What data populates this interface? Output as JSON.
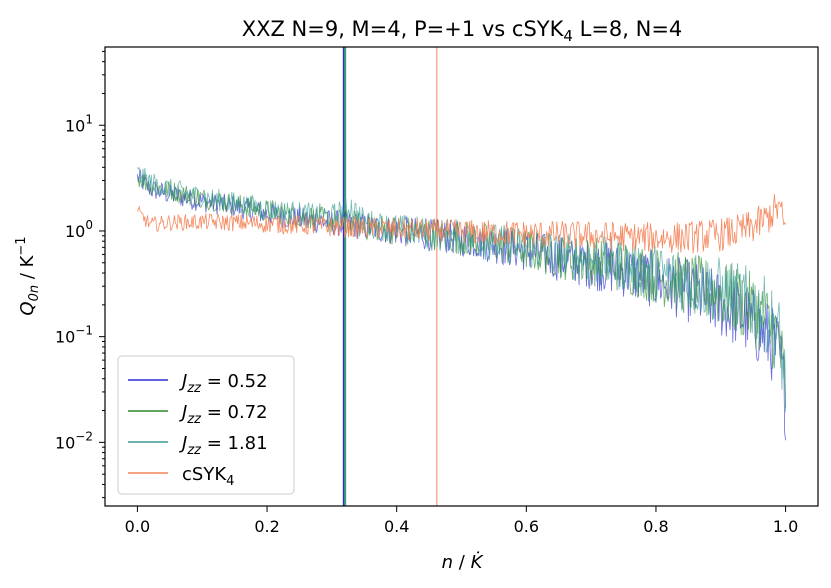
{
  "chart_data": {
    "type": "line",
    "title_parts": [
      "XXZ N=9, M=4, P=+1 vs cSYK",
      "4",
      " L=8, N=4"
    ],
    "title": "XXZ N=9, M=4, P=+1 vs cSYK4 L=8, N=4",
    "xlabel": "n / K̇",
    "ylabel": "Q0n / K−1",
    "yscale": "log",
    "xlim": [
      -0.05,
      1.05
    ],
    "ylim": [
      0.0025,
      55
    ],
    "xticks": [
      0.0,
      0.2,
      0.4,
      0.6,
      0.8,
      1.0
    ],
    "xtick_labels": [
      "0.0",
      "0.2",
      "0.4",
      "0.6",
      "0.8",
      "1.0"
    ],
    "yticks": [
      0.01,
      0.1,
      1,
      10
    ],
    "ytick_bases": [
      "10",
      "10",
      "10",
      "10"
    ],
    "ytick_exponents": [
      "−2",
      "−1",
      "0",
      "1"
    ],
    "legend_position": "lower-left",
    "series": [
      {
        "name": "Jzz = 0.52",
        "legend_main": "J",
        "legend_sub": "zz",
        "legend_value": " = 0.52",
        "color": "#2b2bd6",
        "x": [
          0.0,
          0.02,
          0.05,
          0.1,
          0.15,
          0.2,
          0.25,
          0.3,
          0.35,
          0.4,
          0.45,
          0.5,
          0.55,
          0.6,
          0.65,
          0.7,
          0.75,
          0.8,
          0.85,
          0.9,
          0.93,
          0.95,
          0.97,
          0.99,
          1.0
        ],
        "y": [
          3.2,
          2.5,
          2.2,
          1.9,
          1.7,
          1.45,
          1.3,
          1.2,
          1.1,
          1.0,
          0.92,
          0.85,
          0.75,
          0.65,
          0.55,
          0.48,
          0.42,
          0.34,
          0.27,
          0.2,
          0.16,
          0.13,
          0.1,
          0.07,
          0.025
        ],
        "vline": 0.318
      },
      {
        "name": "Jzz = 0.72",
        "legend_main": "J",
        "legend_sub": "zz",
        "legend_value": " = 0.72",
        "color": "#2e8b2e",
        "x": [
          0.0,
          0.02,
          0.05,
          0.1,
          0.15,
          0.2,
          0.25,
          0.3,
          0.35,
          0.4,
          0.45,
          0.5,
          0.55,
          0.6,
          0.65,
          0.7,
          0.75,
          0.8,
          0.85,
          0.9,
          0.93,
          0.95,
          0.97,
          0.99,
          1.0
        ],
        "y": [
          3.3,
          2.7,
          2.4,
          2.05,
          1.8,
          1.55,
          1.38,
          1.25,
          1.12,
          1.02,
          0.94,
          0.86,
          0.77,
          0.67,
          0.58,
          0.52,
          0.46,
          0.38,
          0.31,
          0.25,
          0.21,
          0.18,
          0.14,
          0.09,
          0.03
        ],
        "vline": 0.32
      },
      {
        "name": "Jzz = 1.81",
        "legend_main": "J",
        "legend_sub": "zz",
        "legend_value": " = 1.81",
        "color": "#3a9c96",
        "x": [
          0.0,
          0.02,
          0.05,
          0.1,
          0.15,
          0.2,
          0.25,
          0.3,
          0.33,
          0.35,
          0.4,
          0.45,
          0.5,
          0.55,
          0.6,
          0.65,
          0.7,
          0.75,
          0.8,
          0.85,
          0.9,
          0.93,
          0.95,
          0.97,
          0.99,
          1.0
        ],
        "y": [
          3.5,
          2.9,
          2.5,
          2.1,
          1.85,
          1.6,
          1.45,
          1.35,
          1.7,
          1.2,
          1.05,
          0.95,
          0.87,
          0.78,
          0.69,
          0.6,
          0.54,
          0.48,
          0.4,
          0.33,
          0.27,
          0.23,
          0.2,
          0.16,
          0.1,
          0.035
        ],
        "vline": 0.321
      },
      {
        "name": "cSYK4",
        "legend_main": "cSYK",
        "legend_sub": "4",
        "legend_value": "",
        "color": "#f4845a",
        "x": [
          0.0,
          0.02,
          0.05,
          0.1,
          0.15,
          0.2,
          0.25,
          0.3,
          0.35,
          0.4,
          0.45,
          0.5,
          0.55,
          0.6,
          0.65,
          0.7,
          0.75,
          0.8,
          0.85,
          0.9,
          0.93,
          0.95,
          0.97,
          0.99,
          1.0
        ],
        "y": [
          1.5,
          1.15,
          1.2,
          1.22,
          1.2,
          1.17,
          1.14,
          1.1,
          1.07,
          1.04,
          1.01,
          0.98,
          0.96,
          0.94,
          0.92,
          0.9,
          0.88,
          0.86,
          0.87,
          0.92,
          1.0,
          1.1,
          1.3,
          1.7,
          1.0
        ],
        "vline": 0.462
      }
    ]
  }
}
